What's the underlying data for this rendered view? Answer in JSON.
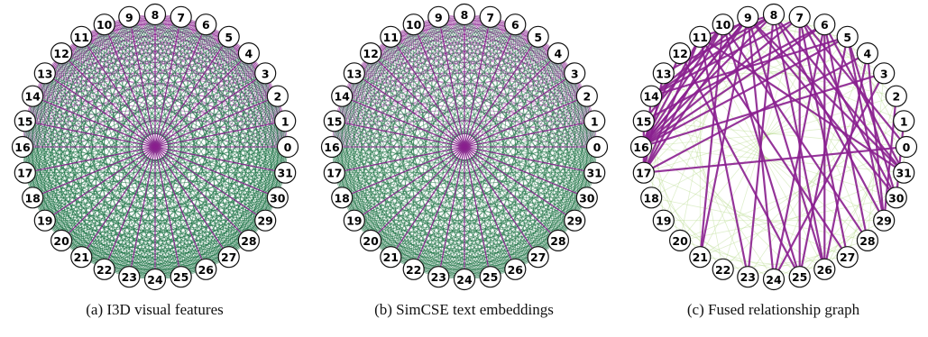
{
  "node_labels": [
    "0",
    "1",
    "2",
    "3",
    "4",
    "5",
    "6",
    "7",
    "8",
    "9",
    "10",
    "11",
    "12",
    "13",
    "14",
    "15",
    "16",
    "17",
    "18",
    "19",
    "20",
    "21",
    "22",
    "23",
    "24",
    "25",
    "26",
    "27",
    "28",
    "29",
    "30",
    "31"
  ],
  "colors": {
    "purple_edge": "#8a1f8f",
    "green_edge": "#0f6b3a",
    "light_green_edge": "#b9dc8f",
    "node_fill": "#ffffff",
    "node_stroke": "#111111"
  },
  "panels": [
    {
      "id": "a",
      "caption": "(a) I3D visual features",
      "graph_type": "dense-complete",
      "purple_node_range": [
        0,
        16
      ],
      "green_node_range": [
        17,
        31
      ]
    },
    {
      "id": "b",
      "caption": "(b) SimCSE text embeddings",
      "graph_type": "dense-complete",
      "purple_node_range": [
        0,
        16
      ],
      "green_node_range": [
        17,
        31
      ]
    },
    {
      "id": "c",
      "caption": "(c) Fused relationship graph",
      "graph_type": "sparse",
      "strong_edges": [
        [
          9,
          17
        ],
        [
          9,
          16
        ],
        [
          9,
          21
        ],
        [
          9,
          24
        ],
        [
          9,
          26
        ],
        [
          9,
          31
        ],
        [
          9,
          30
        ],
        [
          9,
          14
        ],
        [
          8,
          16
        ],
        [
          8,
          14
        ],
        [
          8,
          13
        ],
        [
          8,
          23
        ],
        [
          8,
          26
        ],
        [
          8,
          29
        ],
        [
          8,
          31
        ],
        [
          8,
          11
        ],
        [
          7,
          16
        ],
        [
          7,
          14
        ],
        [
          7,
          25
        ],
        [
          7,
          30
        ],
        [
          7,
          27
        ],
        [
          7,
          0
        ],
        [
          10,
          15
        ],
        [
          10,
          16
        ],
        [
          10,
          17
        ],
        [
          10,
          21
        ],
        [
          10,
          25
        ],
        [
          10,
          28
        ],
        [
          6,
          15
        ],
        [
          6,
          16
        ],
        [
          6,
          24
        ],
        [
          6,
          26
        ],
        [
          6,
          28
        ],
        [
          6,
          31
        ],
        [
          5,
          16
        ],
        [
          5,
          14
        ],
        [
          5,
          25
        ],
        [
          5,
          29
        ],
        [
          5,
          30
        ],
        [
          11,
          16
        ],
        [
          11,
          17
        ],
        [
          11,
          23
        ],
        [
          11,
          27
        ],
        [
          11,
          31
        ],
        [
          12,
          16
        ],
        [
          12,
          25
        ],
        [
          4,
          17
        ],
        [
          4,
          26
        ],
        [
          4,
          29
        ],
        [
          3,
          16
        ],
        [
          3,
          24
        ],
        [
          13,
          17
        ],
        [
          14,
          17
        ],
        [
          15,
          17
        ],
        [
          16,
          9
        ],
        [
          2,
          29
        ],
        [
          1,
          30
        ],
        [
          0,
          17
        ]
      ]
    }
  ]
}
